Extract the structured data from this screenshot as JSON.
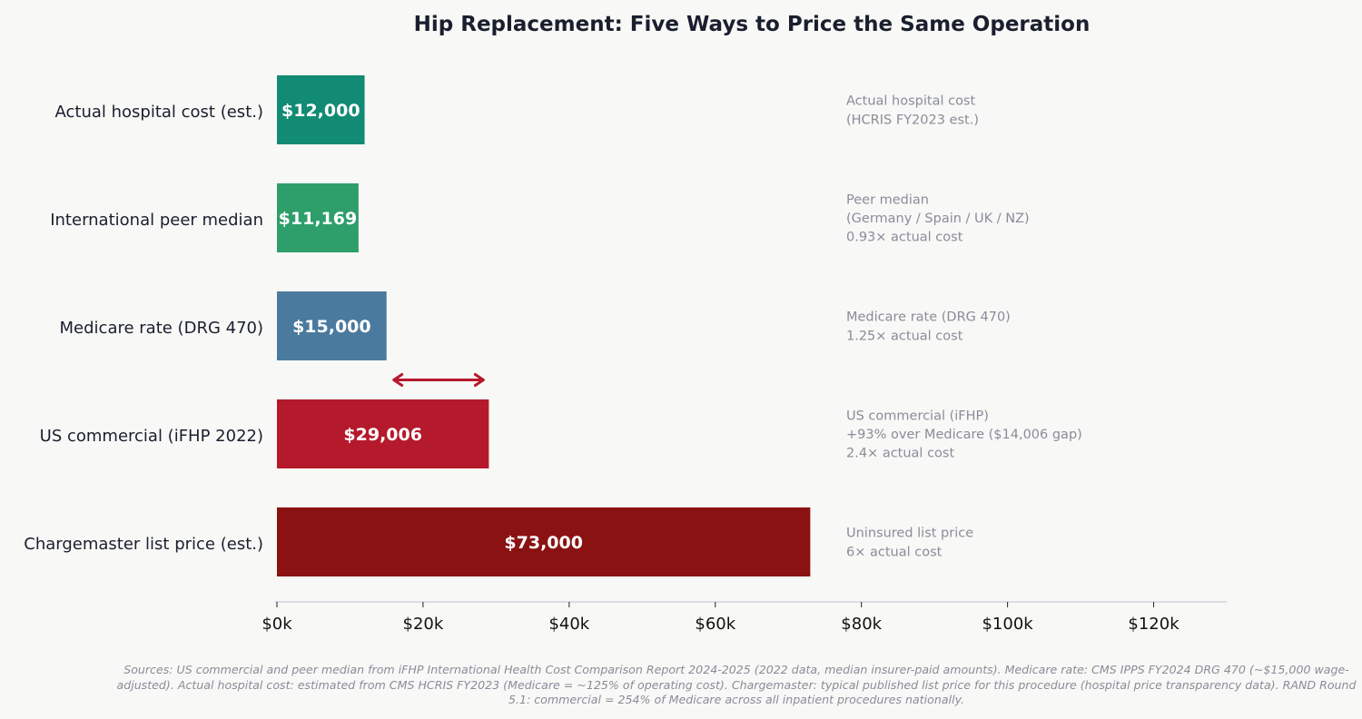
{
  "chart_data": {
    "type": "bar",
    "orientation": "horizontal",
    "title": "Hip Replacement: Five Ways to Price the Same Operation",
    "categories": [
      "Actual hospital cost (est.)",
      "International peer median",
      "Medicare rate (DRG 470)",
      "US commercial (iFHP 2022)",
      "Chargemaster list price (est.)"
    ],
    "values": [
      12000,
      11169,
      15000,
      29006,
      73000
    ],
    "value_labels": [
      "$12,000",
      "$11,169",
      "$15,000",
      "$29,006",
      "$73,000"
    ],
    "colors": [
      "#118b73",
      "#2e9e6b",
      "#4a7a9e",
      "#b5192c",
      "#8b1212"
    ],
    "xlim": [
      0,
      130000
    ],
    "xticks": [
      0,
      20000,
      40000,
      60000,
      80000,
      100000,
      120000
    ],
    "xtick_labels": [
      "$0k",
      "$20k",
      "$40k",
      "$60k",
      "$80k",
      "$100k",
      "$120k"
    ],
    "annotations": [
      [
        "Actual hospital cost",
        "(HCRIS FY2023 est.)"
      ],
      [
        "Peer median",
        "(Germany / Spain / UK / NZ)",
        "0.93× actual cost"
      ],
      [
        "Medicare rate (DRG 470)",
        "1.25× actual cost"
      ],
      [
        "US commercial (iFHP)",
        "+93% over Medicare  ($14,006 gap)",
        "2.4× actual cost"
      ],
      [
        "Uninsured list price",
        "6× actual cost"
      ]
    ],
    "gap_arrow": {
      "from": 15000,
      "to": 29006,
      "color": "#b5192c"
    },
    "grid": false
  },
  "footnote": "Sources: US commercial and peer median from iFHP International Health Cost Comparison Report 2024-2025 (2022 data, median insurer-paid amounts). Medicare rate: CMS IPPS FY2024 DRG 470 (~$15,000 wage-adjusted). Actual hospital cost: estimated from CMS HCRIS FY2023 (Medicare = ~125% of operating cost). Chargemaster: typical published list price for this procedure (hospital price transparency data). RAND Round 5.1: commercial = 254% of Medicare across all inpatient procedures nationally."
}
